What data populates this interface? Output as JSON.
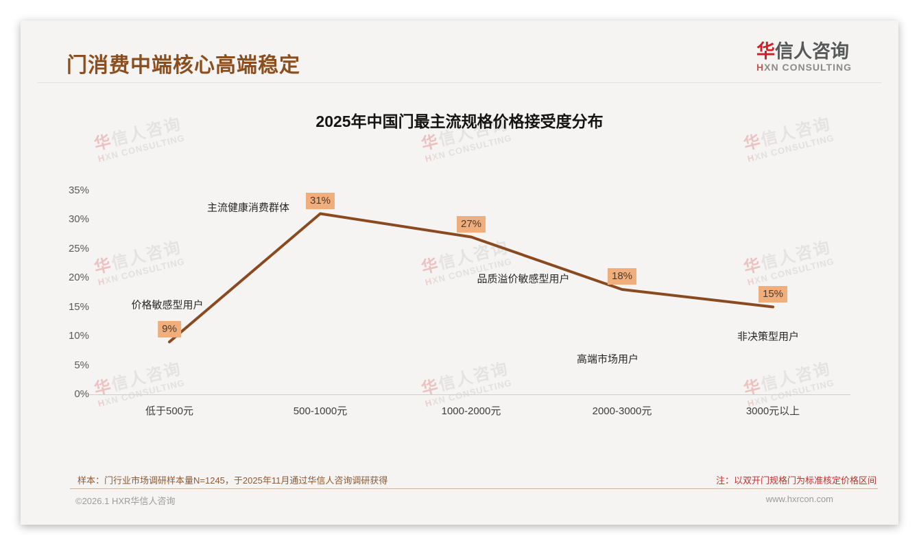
{
  "page": {
    "title": "门消费中端核心高端稳定",
    "logo": {
      "accent": "华",
      "rest": "信人咨询",
      "sub_accent": "H",
      "sub_rest": "XN CONSULTING"
    },
    "watermark": {
      "accent": "华",
      "rest": "信人咨询",
      "sub_accent": "H",
      "sub_rest": "XN CONSULTING"
    }
  },
  "chart_data": {
    "type": "line",
    "title": "2025年中国门最主流规格价格接受度分布",
    "categories": [
      "低于500元",
      "500-1000元",
      "1000-2000元",
      "2000-3000元",
      "3000元以上"
    ],
    "values": [
      9,
      31,
      27,
      18,
      15
    ],
    "data_labels": [
      "9%",
      "31%",
      "27%",
      "18%",
      "15%"
    ],
    "y_tick_labels": [
      "35%",
      "30%",
      "25%",
      "20%",
      "15%",
      "10%",
      "5%",
      "0%"
    ],
    "y_tick_values": [
      35,
      30,
      25,
      20,
      15,
      10,
      5,
      0
    ],
    "ylim": [
      0,
      35
    ],
    "xlabel": "",
    "ylabel": "",
    "grid": false,
    "legend": false,
    "line_color": "#8a4a1f",
    "data_label_bg": "#f0ae7d",
    "annotations": [
      {
        "text": "价格敏感型用户"
      },
      {
        "text": "主流健康消费群体"
      },
      {
        "text": "品质溢价敏感型用户"
      },
      {
        "text": "高端市场用户"
      },
      {
        "text": "非决策型用户"
      }
    ]
  },
  "footer": {
    "sample_note": "样本：门行业市场调研样本量N=1245，于2025年11月通过华信人咨询调研获得",
    "price_note": "注：以双开门规格门为标准核定价格区间",
    "copyright": "©2026.1 HXR华信人咨询",
    "website": "www.hxrcon.com"
  }
}
